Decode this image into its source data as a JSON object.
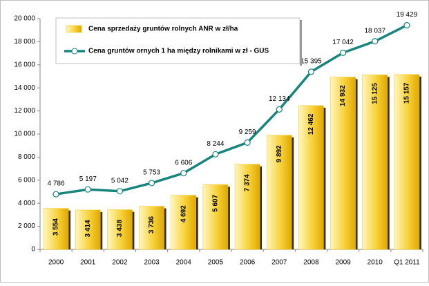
{
  "chart_data": {
    "type": "combo",
    "categories": [
      "2000",
      "2001",
      "2002",
      "2003",
      "2004",
      "2005",
      "2006",
      "2007",
      "2008",
      "2009",
      "2010",
      "Q1 2011"
    ],
    "series": [
      {
        "name": "Cena sprzedaży gruntów rolnych ANR w zł/ha",
        "type": "bar",
        "color": "#f2c200",
        "values": [
          3554,
          3414,
          3438,
          3736,
          4692,
          5607,
          7374,
          9892,
          12462,
          14932,
          15125,
          15157
        ],
        "value_labels": [
          "3 554",
          "3 414",
          "3 438",
          "3 736",
          "4 692",
          "5 607",
          "7 374",
          "9 892",
          "12 462",
          "14 932",
          "15 125",
          "15 157"
        ]
      },
      {
        "name": "Cena gruntów ornych 1 ha między rolnikami w zł - GUS",
        "type": "line",
        "color": "#17857d",
        "values": [
          4786,
          5197,
          5042,
          5753,
          6606,
          8244,
          9259,
          12134,
          15395,
          17042,
          18037,
          19429
        ],
        "value_labels": [
          "4 786",
          "5 197",
          "5 042",
          "5 753",
          "6 606",
          "8 244",
          "9 259",
          "12 134",
          "15 395",
          "17 042",
          "18 037",
          "19 429"
        ]
      }
    ],
    "ylim": [
      0,
      20000
    ],
    "yticks": [
      0,
      {
        "value": 2000,
        "label": "2 000"
      },
      {
        "value": 4000,
        "label": "4 000"
      },
      {
        "value": 6000,
        "label": "6 000"
      },
      {
        "value": 8000,
        "label": "8 000"
      },
      {
        "value": 10000,
        "label": "10 000"
      },
      {
        "value": 12000,
        "label": "12 000"
      },
      {
        "value": 14000,
        "label": "14 000"
      },
      {
        "value": 16000,
        "label": "16 000"
      },
      {
        "value": 18000,
        "label": "18 000"
      },
      {
        "value": 20000,
        "label": "20 000"
      }
    ],
    "grid": false,
    "legend": "top-left"
  }
}
